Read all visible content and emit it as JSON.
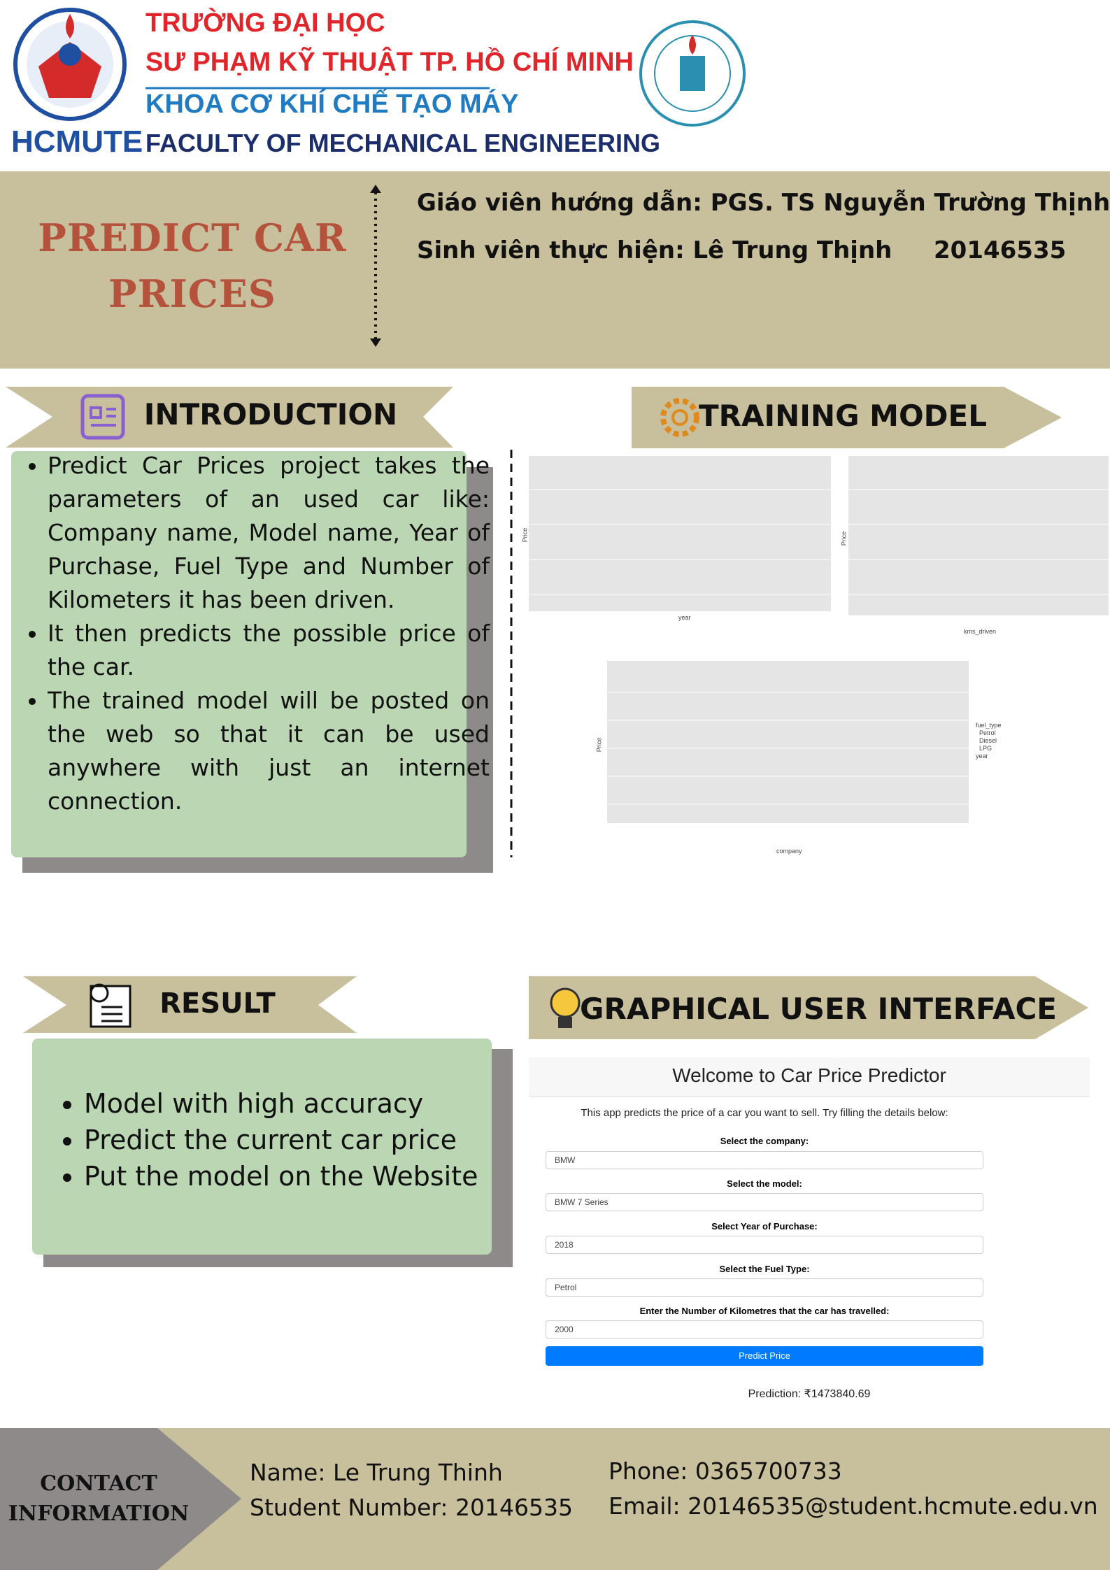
{
  "header": {
    "university_line1": "TRƯỜNG ĐẠI HỌC",
    "university_line2": "SƯ PHẠM KỸ THUẬT TP. HỒ CHÍ MINH",
    "faculty_vi": "KHOA CƠ KHÍ CHẾ TẠO MÁY",
    "faculty_en": "FACULTY OF MECHANICAL ENGINEERING",
    "logo_text": "HCMUTE"
  },
  "title_lines": [
    "PREDICT CAR",
    "PRICES"
  ],
  "supervisor": "Giáo viên hướng dẫn: PGS. TS Nguyễn Trường Thịnh",
  "student": "Sinh viên thực hiện: Lê Trung Thịnh",
  "student_id": "20146535",
  "introduction": {
    "heading": "INTRODUCTION",
    "bullets": [
      "Predict Car Prices project takes the parameters of an used car like: Company name, Model name, Year of Purchase, Fuel Type and Number of Kilometers it has been driven.",
      "It then predicts the possible price of the car.",
      "The trained model will be posted on the web so that it can be used anywhere with just an internet connection."
    ]
  },
  "training_model": {
    "heading": "TRAINING MODEL",
    "charts": [
      {
        "x_label": "year",
        "y_label": "Price"
      },
      {
        "x_label": "kms_driven",
        "y_label": "Price"
      },
      {
        "x_label": "company",
        "y_label": "Price",
        "legend": [
          "fuel_type",
          "Petrol",
          "Diesel",
          "LPG",
          "year"
        ]
      }
    ]
  },
  "result": {
    "heading": "RESULT",
    "bullets": [
      "Model with high accuracy",
      "Predict the current car price",
      "Put the model on the Website"
    ]
  },
  "gui": {
    "heading": "GRAPHICAL USER INTERFACE",
    "app_title": "Welcome to Car Price Predictor",
    "app_subtitle": "This app predicts the price of a car you want to sell. Try filling the details below:",
    "fields": [
      {
        "label": "Select the company:",
        "value": "BMW"
      },
      {
        "label": "Select the model:",
        "value": "BMW 7 Series"
      },
      {
        "label": "Select Year of Purchase:",
        "value": "2018"
      },
      {
        "label": "Select the Fuel Type:",
        "value": "Petrol"
      },
      {
        "label": "Enter the Number of Kilometres that the car has travelled:",
        "value": "2000"
      }
    ],
    "button": "Predict Price",
    "prediction": "Prediction: ₹1473840.69"
  },
  "contact": {
    "heading": "CONTACT INFORMATION",
    "name": "Name: Le Trung Thinh",
    "student_number": "Student Number: 20146535",
    "phone": "Phone: 0365700733",
    "email": "Email: 20146535@student.hcmute.edu.vn"
  }
}
